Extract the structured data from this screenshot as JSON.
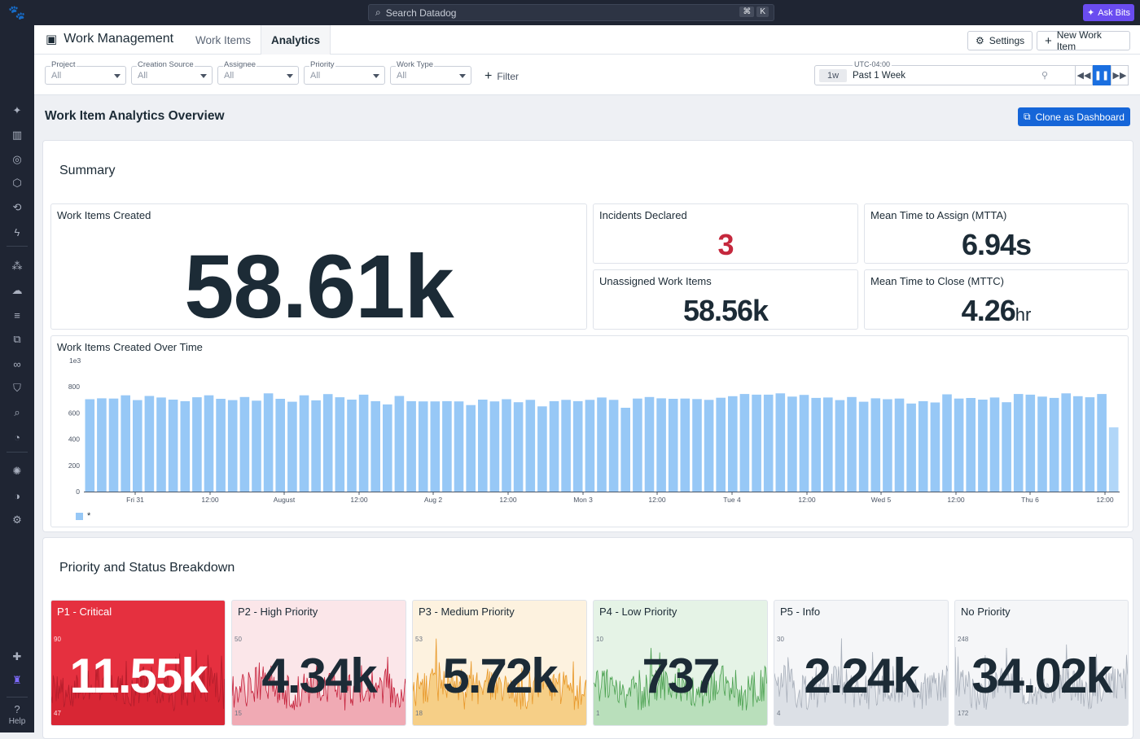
{
  "topbar": {
    "search_placeholder": "Search Datadog",
    "kbd1": "⌘",
    "kbd2": "K",
    "ask_bits": "Ask Bits"
  },
  "sidebar": {
    "help": "Help"
  },
  "header": {
    "app_title": "Work Management",
    "tabs": [
      {
        "label": "Work Items"
      },
      {
        "label": "Analytics"
      }
    ],
    "settings": "Settings",
    "new_item": "New Work Item"
  },
  "filters": {
    "items": [
      {
        "label": "Project",
        "value": "All"
      },
      {
        "label": "Creation Source",
        "value": "All"
      },
      {
        "label": "Assignee",
        "value": "All"
      },
      {
        "label": "Priority",
        "value": "All"
      },
      {
        "label": "Work Type",
        "value": "All"
      }
    ],
    "add_filter": "Filter",
    "timezone": "UTC-04:00",
    "time_pill": "1w",
    "time_value": "Past 1 Week"
  },
  "page": {
    "title": "Work Item Analytics Overview",
    "clone_button": "Clone as Dashboard"
  },
  "summary": {
    "title": "Summary",
    "created": {
      "title": "Work Items Created",
      "value": "58.61k"
    },
    "incidents": {
      "title": "Incidents Declared",
      "value": "3",
      "color": "#c5283d"
    },
    "mtta": {
      "title": "Mean Time to Assign (MTTA)",
      "value": "6.94s"
    },
    "unassigned": {
      "title": "Unassigned Work Items",
      "value": "58.56k"
    },
    "mttc": {
      "title": "Mean Time to Close (MTTC)",
      "value": "4.26",
      "unit": "hr"
    }
  },
  "over_time": {
    "title": "Work Items Created Over Time",
    "legend": "*",
    "chart_data": {
      "type": "bar",
      "title": "Work Items Created Over Time",
      "y_scale_label": "1e3",
      "ylim": [
        0,
        1000
      ],
      "y_ticks": [
        "0",
        "200",
        "400",
        "600",
        "800"
      ],
      "x_ticks": [
        "Fri 31",
        "12:00",
        "August",
        "12:00",
        "Aug 2",
        "12:00",
        "Mon 3",
        "12:00",
        "Tue 4",
        "12:00",
        "Wed 5",
        "12:00",
        "Thu 6",
        "12:00"
      ],
      "color": "#97c8f6",
      "values": [
        705,
        712,
        710,
        735,
        698,
        730,
        718,
        702,
        690,
        720,
        735,
        708,
        698,
        722,
        694,
        750,
        708,
        686,
        735,
        696,
        744,
        720,
        702,
        740,
        690,
        665,
        730,
        690,
        688,
        688,
        690,
        688,
        660,
        702,
        688,
        705,
        682,
        700,
        650,
        690,
        700,
        690,
        700,
        718,
        700,
        640,
        710,
        722,
        712,
        708,
        710,
        706,
        700,
        716,
        728,
        745,
        740,
        740,
        750,
        725,
        738,
        715,
        718,
        698,
        722,
        686,
        712,
        705,
        710,
        672,
        690,
        680,
        742,
        710,
        714,
        702,
        718,
        682,
        745,
        740,
        725,
        715,
        750,
        728,
        720,
        745,
        490
      ]
    }
  },
  "breakdown": {
    "title": "Priority and Status Breakdown",
    "cards": [
      {
        "title": "P1 - Critical",
        "value": "11.55k",
        "ymax": "90",
        "ymin": "47",
        "bg": "#e5303f",
        "line": "#b31d2b",
        "fill": "#d82634",
        "text": "#ffffff"
      },
      {
        "title": "P2 - High Priority",
        "value": "4.34k",
        "ymax": "50",
        "ymin": "15",
        "bg": "#fbe6e9",
        "line": "#c4203a",
        "fill": "#f0aab4",
        "text": "#1c2b36"
      },
      {
        "title": "P3 - Medium Priority",
        "value": "5.72k",
        "ymax": "53",
        "ymin": "18",
        "bg": "#fdf2df",
        "line": "#e8982a",
        "fill": "#f6cf87",
        "text": "#1c2b36"
      },
      {
        "title": "P4 - Low Priority",
        "value": "737",
        "ymax": "10",
        "ymin": "1",
        "bg": "#e5f3e6",
        "line": "#4aa04f",
        "fill": "#b9dfbb",
        "text": "#1c2b36"
      },
      {
        "title": "P5 - Info",
        "value": "2.24k",
        "ymax": "30",
        "ymin": "4",
        "bg": "#f5f6f8",
        "line": "#a8afba",
        "fill": "#dce0e6",
        "text": "#1c2b36"
      },
      {
        "title": "No Priority",
        "value": "34.02k",
        "ymax": "248",
        "ymin": "172",
        "bg": "#f5f6f8",
        "line": "#a8afba",
        "fill": "#dce0e6",
        "text": "#1c2b36"
      }
    ]
  }
}
